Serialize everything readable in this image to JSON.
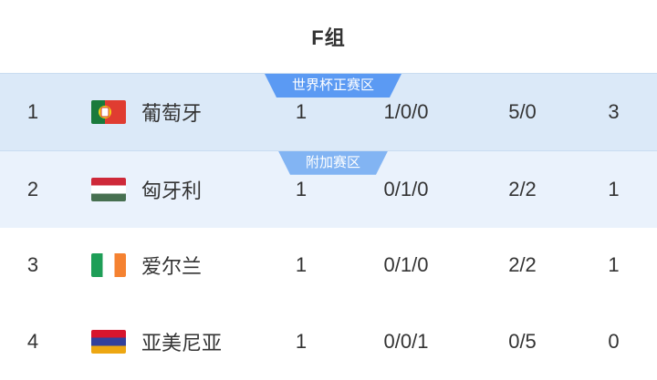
{
  "header": {
    "title": "F组"
  },
  "colors": {
    "badge_primary": "#5b9af3",
    "badge_secondary": "#82b4f3",
    "row_first": "#dbe9f8",
    "row_second": "#eaf2fc",
    "row_divider": "#c9dcf1",
    "text": "#333333"
  },
  "zones": {
    "direct_label": "世界杯正赛区",
    "playoff_label": "附加赛区"
  },
  "table": {
    "rows": [
      {
        "rank": "1",
        "team": "葡萄牙",
        "flag": "portugal-flag",
        "played": "1",
        "win_draw_loss": "1/0/0",
        "goals_for_against": "5/0",
        "points": "3",
        "zone_badge": "世界杯正赛区"
      },
      {
        "rank": "2",
        "team": "匈牙利",
        "flag": "hungary-flag",
        "played": "1",
        "win_draw_loss": "0/1/0",
        "goals_for_against": "2/2",
        "points": "1",
        "zone_badge": "附加赛区"
      },
      {
        "rank": "3",
        "team": "爱尔兰",
        "flag": "ireland-flag",
        "played": "1",
        "win_draw_loss": "0/1/0",
        "goals_for_against": "2/2",
        "points": "1"
      },
      {
        "rank": "4",
        "team": "亚美尼亚",
        "flag": "armenia-flag",
        "played": "1",
        "win_draw_loss": "0/0/1",
        "goals_for_against": "0/5",
        "points": "0"
      }
    ]
  }
}
